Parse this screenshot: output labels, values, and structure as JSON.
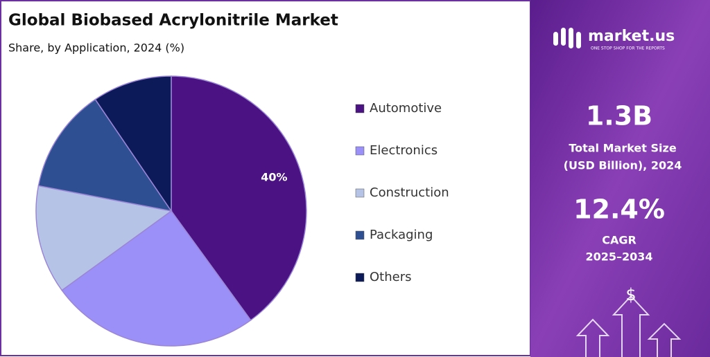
{
  "chart_data": {
    "type": "pie",
    "title": "Global Biobased Acrylonitrile Market",
    "subtitle": "Share, by Application, 2024 (%)",
    "categories": [
      "Automotive",
      "Electronics",
      "Construction",
      "Packaging",
      "Others"
    ],
    "values": [
      40,
      25,
      13,
      12.5,
      9.5
    ],
    "value_labels": [
      "40%",
      null,
      null,
      null,
      null
    ],
    "colors": [
      "#4a1282",
      "#9a90f8",
      "#b5c4e6",
      "#2e4f91",
      "#0d1a5a"
    ]
  },
  "panel": {
    "brand": "market.us",
    "tagline": "ONE STOP SHOP FOR THE REPORTS",
    "market_size": "1.3B",
    "market_size_label": [
      "Total Market Size",
      "(USD Billion), 2024"
    ],
    "cagr": "12.4%",
    "cagr_label": [
      "CAGR",
      "2025–2034"
    ]
  }
}
